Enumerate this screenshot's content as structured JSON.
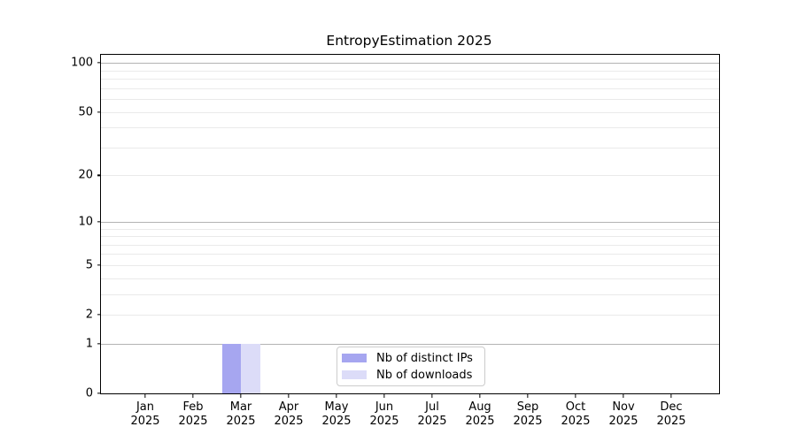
{
  "chart_data": {
    "type": "bar",
    "title": "EntropyEstimation 2025",
    "x_year": "2025",
    "categories": [
      "Jan",
      "Feb",
      "Mar",
      "Apr",
      "May",
      "Jun",
      "Jul",
      "Aug",
      "Sep",
      "Oct",
      "Nov",
      "Dec"
    ],
    "series": [
      {
        "name": "Nb of distinct IPs",
        "color": "#a6a6f0",
        "values": [
          0,
          0,
          1,
          0,
          0,
          0,
          0,
          0,
          0,
          0,
          0,
          0
        ]
      },
      {
        "name": "Nb of downloads",
        "color": "#dcdcf8",
        "values": [
          0,
          0,
          1,
          0,
          0,
          0,
          0,
          0,
          0,
          0,
          0,
          0
        ]
      }
    ],
    "yscale": "log1p",
    "ylim": [
      0,
      112
    ],
    "y_ticks": [
      0,
      1,
      2,
      5,
      10,
      20,
      50,
      100
    ],
    "y_major_gridlines": [
      1,
      10,
      100
    ],
    "y_minor_gridlines": [
      2,
      3,
      4,
      5,
      6,
      7,
      8,
      9,
      20,
      30,
      40,
      50,
      60,
      70,
      80,
      90
    ],
    "legend": {
      "position": "lower center"
    },
    "colors": {
      "major_grid": "#b3b3b3",
      "minor_grid": "#eaeaea",
      "axis": "#000000",
      "background": "#ffffff"
    }
  }
}
